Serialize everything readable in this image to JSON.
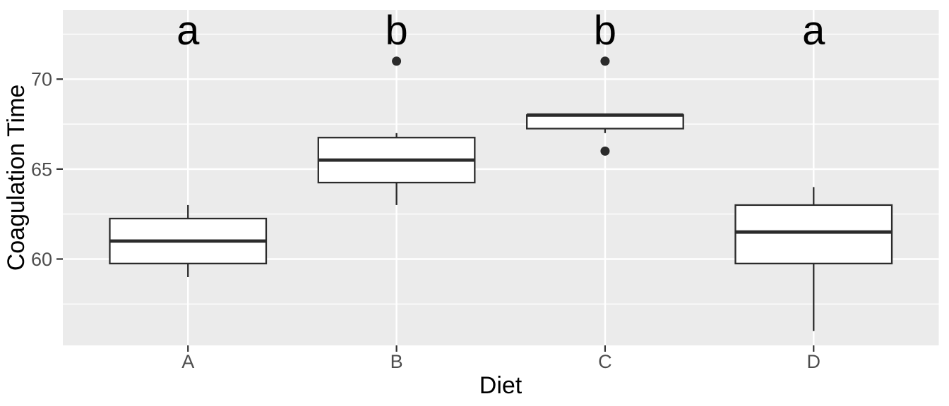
{
  "chart_data": {
    "type": "boxplot",
    "title": "",
    "xlabel": "Diet",
    "ylabel": "Coagulation Time",
    "categories": [
      "A",
      "B",
      "C",
      "D"
    ],
    "ylim": [
      55.2,
      73.85
    ],
    "y_major_ticks": [
      60,
      65,
      70
    ],
    "y_major_tick_labels": [
      "60",
      "65",
      "70"
    ],
    "y_minor_gridlines": [
      57.5,
      62.5,
      67.5,
      72.5
    ],
    "grid": "horizontal-major-and-minor, vertical-major-at-categories",
    "legend_position": "none",
    "series": [
      {
        "category": "A",
        "letter": "a",
        "whisker_low": 59,
        "q1": 59.75,
        "median": 61,
        "q3": 62.25,
        "whisker_high": 63,
        "outliers": []
      },
      {
        "category": "B",
        "letter": "b",
        "whisker_low": 63,
        "q1": 64.25,
        "median": 65.5,
        "q3": 66.75,
        "whisker_high": 67,
        "outliers": [
          71
        ]
      },
      {
        "category": "C",
        "letter": "b",
        "whisker_low": 67,
        "q1": 67.25,
        "median": 68,
        "q3": 68,
        "whisker_high": 68,
        "outliers": [
          66,
          71
        ]
      },
      {
        "category": "D",
        "letter": "a",
        "whisker_low": 56,
        "q1": 59.75,
        "median": 61.5,
        "q3": 63,
        "whisker_high": 64,
        "outliers": []
      }
    ],
    "annotations": {
      "significance_letters": [
        "a",
        "b",
        "b",
        "a"
      ],
      "letter_y": 72.72
    },
    "colors": {
      "background": "#FFFFFF",
      "panel_bg": "#EBEBEB",
      "grid": "#FFFFFF",
      "box_fill": "#FFFFFF",
      "box_stroke": "#2B2B2B",
      "outlier": "#2B2B2B",
      "tick_mark": "#333333",
      "tick_label": "#4D4D4D",
      "axis_title": "#000000",
      "letter": "#000000"
    }
  }
}
